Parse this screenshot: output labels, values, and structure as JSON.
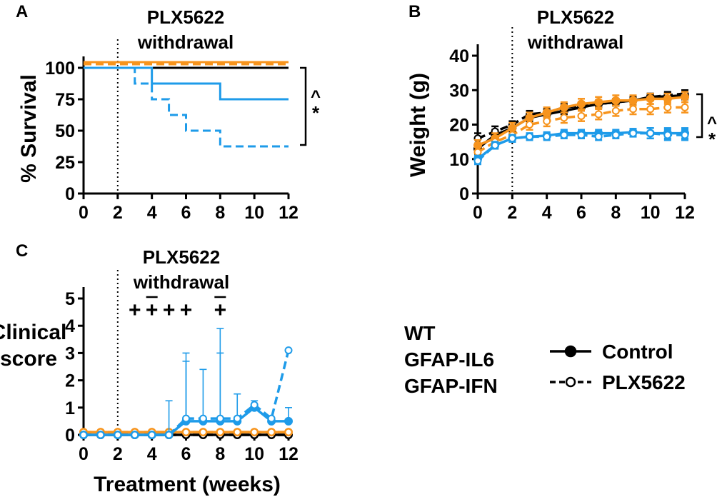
{
  "colors": {
    "wt": "#000000",
    "il6": "#F7941D",
    "ifn": "#1E9BE9"
  },
  "chart_data": [
    {
      "panel": "A",
      "type": "line",
      "subtype": "survival-step",
      "title": "PLX5622",
      "title2": "withdrawal",
      "xlabel": "",
      "ylabel": "% Survival",
      "xlim": [
        0,
        12
      ],
      "ylim": [
        0,
        100
      ],
      "xticks": [
        0,
        2,
        4,
        6,
        8,
        10,
        12
      ],
      "yticks": [
        0,
        25,
        50,
        75,
        100
      ],
      "vline_x": 2,
      "significance": [
        "^",
        "*"
      ],
      "series": [
        {
          "name": "GFAP-IL6 Control",
          "group": "il6",
          "style": "solid",
          "steps": [
            [
              0,
              100
            ],
            [
              12,
              100
            ]
          ]
        },
        {
          "name": "GFAP-IL6 PLX5622",
          "group": "il6",
          "style": "dashed",
          "steps": [
            [
              0,
              100
            ],
            [
              12,
              100
            ]
          ]
        },
        {
          "name": "WT Control",
          "group": "wt",
          "style": "solid",
          "steps": [
            [
              0,
              100
            ],
            [
              12,
              100
            ]
          ]
        },
        {
          "name": "GFAP-IFN Control",
          "group": "ifn",
          "style": "solid",
          "steps": [
            [
              0,
              100
            ],
            [
              4,
              87.5
            ],
            [
              8,
              75
            ],
            [
              12,
              75
            ]
          ]
        },
        {
          "name": "GFAP-IFN PLX5622",
          "group": "ifn",
          "style": "dashed",
          "steps": [
            [
              0,
              100
            ],
            [
              3,
              87.5
            ],
            [
              4,
              75
            ],
            [
              5,
              62.5
            ],
            [
              6,
              50
            ],
            [
              8,
              37.5
            ],
            [
              12,
              37.5
            ]
          ]
        }
      ]
    },
    {
      "panel": "B",
      "type": "line",
      "title": "PLX5622",
      "title2": "withdrawal",
      "xlabel": "",
      "ylabel": "Weight (g)",
      "xlim": [
        0,
        12
      ],
      "ylim": [
        0,
        40
      ],
      "xticks": [
        0,
        2,
        4,
        6,
        8,
        10,
        12
      ],
      "yticks": [
        0,
        10,
        20,
        30,
        40
      ],
      "vline_x": 2,
      "significance": [
        "^",
        "*"
      ],
      "x": [
        0,
        1,
        2,
        3,
        4,
        5,
        6,
        7,
        8,
        9,
        10,
        11,
        12
      ],
      "series": [
        {
          "name": "WT Control",
          "group": "wt",
          "style": "solid",
          "marker": "filled",
          "values": [
            13,
            17,
            19,
            22,
            23,
            24,
            25,
            26,
            26.5,
            27,
            28,
            28.2,
            28.5
          ],
          "errors": [
            1.5,
            1.5,
            1,
            1,
            1,
            1,
            1,
            1,
            1,
            1,
            1,
            1,
            1.2
          ]
        },
        {
          "name": "WT PLX5622",
          "group": "wt",
          "style": "dashed",
          "marker": "open",
          "values": [
            16,
            18,
            20,
            23,
            23.5,
            25,
            25.5,
            26,
            26.5,
            27,
            28,
            28.5,
            29
          ],
          "errors": [
            1.5,
            1.5,
            1,
            1,
            1,
            1,
            1,
            1,
            1,
            1,
            1,
            1,
            1
          ]
        },
        {
          "name": "GFAP-IL6 Control",
          "group": "il6",
          "style": "solid",
          "marker": "filled",
          "values": [
            14,
            16,
            19,
            22,
            23.5,
            25,
            26,
            26.5,
            27,
            27,
            27.5,
            27.5,
            28
          ],
          "errors": [
            1.5,
            1.5,
            1.5,
            1.5,
            1.5,
            1.5,
            1.5,
            1.5,
            1.5,
            1.5,
            1.5,
            1.5,
            1.5
          ]
        },
        {
          "name": "GFAP-IL6 PLX5622",
          "group": "il6",
          "style": "dashed",
          "marker": "open",
          "values": [
            12,
            15,
            17,
            20,
            21,
            22,
            22.5,
            23,
            24,
            24.5,
            24.5,
            25,
            25
          ],
          "errors": [
            1.5,
            1.5,
            1.5,
            1.5,
            1.5,
            1.5,
            1.5,
            1.5,
            1.5,
            1.5,
            1.5,
            1.5,
            1.5
          ]
        },
        {
          "name": "GFAP-IFN Control",
          "group": "ifn",
          "style": "solid",
          "marker": "filled",
          "values": [
            10,
            14,
            16,
            16.5,
            16.8,
            17.5,
            17.5,
            17.5,
            17.5,
            17.8,
            17.5,
            17.5,
            17.5
          ],
          "errors": [
            1,
            1,
            1,
            1,
            1,
            1,
            1,
            1,
            1,
            1,
            1.5,
            1.5,
            1.5
          ]
        },
        {
          "name": "GFAP-IFN PLX5622",
          "group": "ifn",
          "style": "dashed",
          "marker": "open",
          "values": [
            9.5,
            14,
            16,
            16.5,
            16.5,
            17,
            17,
            16.5,
            17,
            17.5,
            17.5,
            17,
            17
          ],
          "errors": [
            1,
            1,
            1,
            1,
            1,
            1,
            1,
            1,
            1,
            1,
            1.5,
            1.5,
            1.5
          ]
        }
      ]
    },
    {
      "panel": "C",
      "type": "line",
      "title": "PLX5622",
      "title2": "withdrawal",
      "xlabel": "Treatment (weeks)",
      "ylabel": "Clinical score",
      "ylabel_lines": [
        "Clinical",
        "score"
      ],
      "xlim": [
        0,
        12
      ],
      "ylim": [
        0,
        5
      ],
      "xticks": [
        0,
        2,
        4,
        6,
        8,
        10,
        12
      ],
      "yticks": [
        0,
        1,
        2,
        3,
        4,
        5
      ],
      "vline_x": 2,
      "x": [
        0,
        1,
        2,
        3,
        4,
        5,
        6,
        7,
        8,
        9,
        10,
        11,
        12
      ],
      "annotations": [
        {
          "x": 3,
          "text": "+",
          "overbar": false
        },
        {
          "x": 4,
          "text": "+",
          "overbar": true
        },
        {
          "x": 5,
          "text": "+",
          "overbar": false
        },
        {
          "x": 6,
          "text": "+",
          "overbar": false
        },
        {
          "x": 8,
          "text": "+",
          "overbar": true
        }
      ],
      "series": [
        {
          "name": "WT Control",
          "group": "wt",
          "style": "solid",
          "marker": "filled",
          "values": [
            0,
            0,
            0,
            0,
            0,
            0,
            0,
            0,
            0,
            0,
            0,
            0,
            0
          ],
          "errors": [
            0,
            0,
            0,
            0,
            0,
            0,
            0,
            0,
            0,
            0,
            0,
            0,
            0
          ]
        },
        {
          "name": "WT PLX5622",
          "group": "wt",
          "style": "dashed",
          "marker": "open",
          "values": [
            0,
            0,
            0,
            0,
            0,
            0,
            0,
            0,
            0,
            0,
            0,
            0,
            0
          ],
          "errors": [
            0,
            0,
            0,
            0,
            0,
            0,
            0,
            0,
            0,
            0,
            0,
            0,
            0
          ]
        },
        {
          "name": "GFAP-IL6 Control",
          "group": "il6",
          "style": "solid",
          "marker": "filled",
          "values": [
            0.1,
            0.1,
            0.1,
            0.1,
            0.1,
            0.1,
            0.1,
            0.1,
            0.1,
            0.1,
            0.1,
            0.1,
            0.1
          ],
          "errors": [
            0,
            0,
            0,
            0,
            0,
            0,
            0,
            0,
            0,
            0,
            0,
            0,
            0
          ]
        },
        {
          "name": "GFAP-IL6 PLX5622",
          "group": "il6",
          "style": "dashed",
          "marker": "open",
          "values": [
            0.1,
            0.1,
            0.1,
            0.1,
            0.1,
            0.1,
            0.1,
            0.1,
            0.1,
            0.1,
            0.1,
            0.1,
            0.1
          ],
          "errors": [
            0,
            0,
            0,
            0,
            0,
            0,
            0,
            0,
            0,
            0,
            0,
            0,
            0
          ]
        },
        {
          "name": "GFAP-IFN Control",
          "group": "ifn",
          "style": "solid",
          "marker": "filled",
          "values": [
            0,
            0,
            0,
            0,
            0,
            0,
            0.5,
            0.5,
            0.5,
            0.5,
            1.0,
            0.5,
            0.5
          ],
          "errors": [
            0,
            0,
            0,
            0,
            0,
            0,
            2.2,
            1.9,
            2.5,
            1.0,
            0,
            0,
            0.5
          ]
        },
        {
          "name": "GFAP-IFN PLX5622",
          "group": "ifn",
          "style": "dashed",
          "marker": "open",
          "values": [
            0,
            0,
            0,
            0,
            0,
            0,
            0.6,
            0.6,
            0.6,
            0.6,
            1.1,
            0.6,
            3.1
          ],
          "errors": [
            0,
            0,
            0,
            0,
            0,
            1.25,
            2.4,
            0,
            3.3,
            0,
            0.15,
            0,
            0
          ]
        }
      ]
    }
  ],
  "panel_labels": {
    "a": "A",
    "b": "B",
    "c": "C"
  },
  "legend": {
    "genotypes": [
      {
        "label": "WT",
        "group": "wt"
      },
      {
        "label": "GFAP-IL6",
        "group": "il6"
      },
      {
        "label": "GFAP-IFN",
        "group": "ifn"
      }
    ],
    "treatments": [
      {
        "label": "Control",
        "style": "solid",
        "marker": "filled"
      },
      {
        "label": "PLX5622",
        "style": "dashed",
        "marker": "open"
      }
    ]
  }
}
